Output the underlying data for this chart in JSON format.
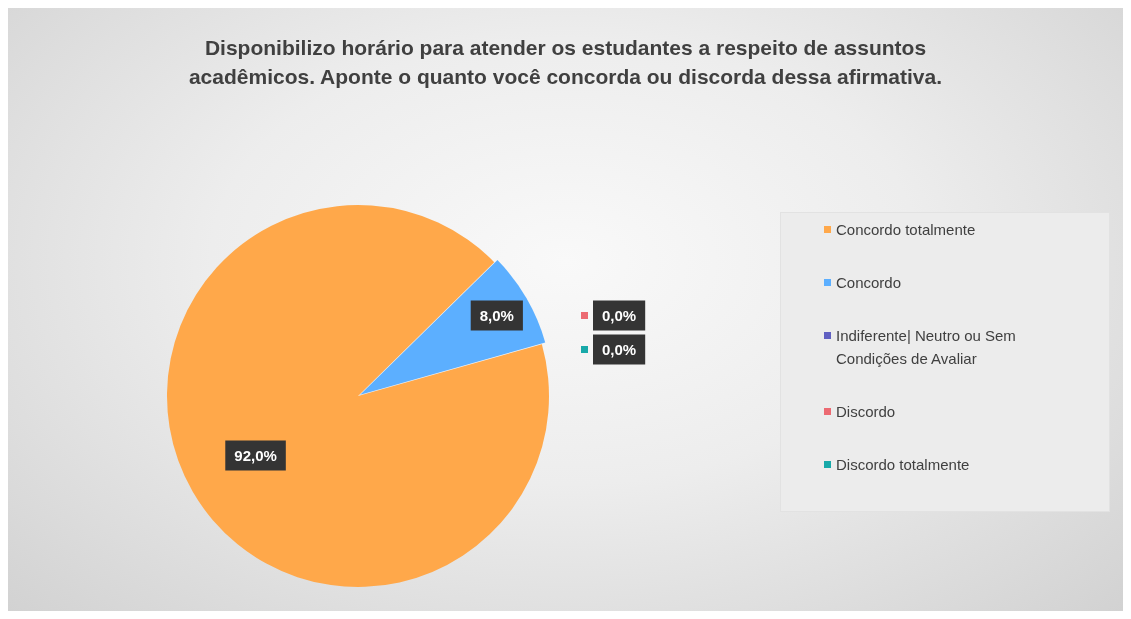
{
  "chart_data": {
    "type": "pie",
    "title": "Disponibilizo horário para atender os estudantes a respeito de assuntos acadêmicos. Aponte o quanto você concorda ou discorda dessa afirmativa.",
    "categories": [
      "Concordo totalmente",
      "Concordo",
      "Indiferente| Neutro ou Sem Condições de Avaliar",
      "Discordo",
      "Discordo totalmente"
    ],
    "values": [
      92,
      8,
      0,
      0,
      0
    ],
    "colors": [
      "#ffa84a",
      "#5cafff",
      "#6060c2",
      "#ec6a72",
      "#18a9a9"
    ],
    "value_labels": [
      "92,0%",
      "8,0%",
      null,
      "0,0%",
      "0,0%"
    ],
    "legend": "right"
  }
}
